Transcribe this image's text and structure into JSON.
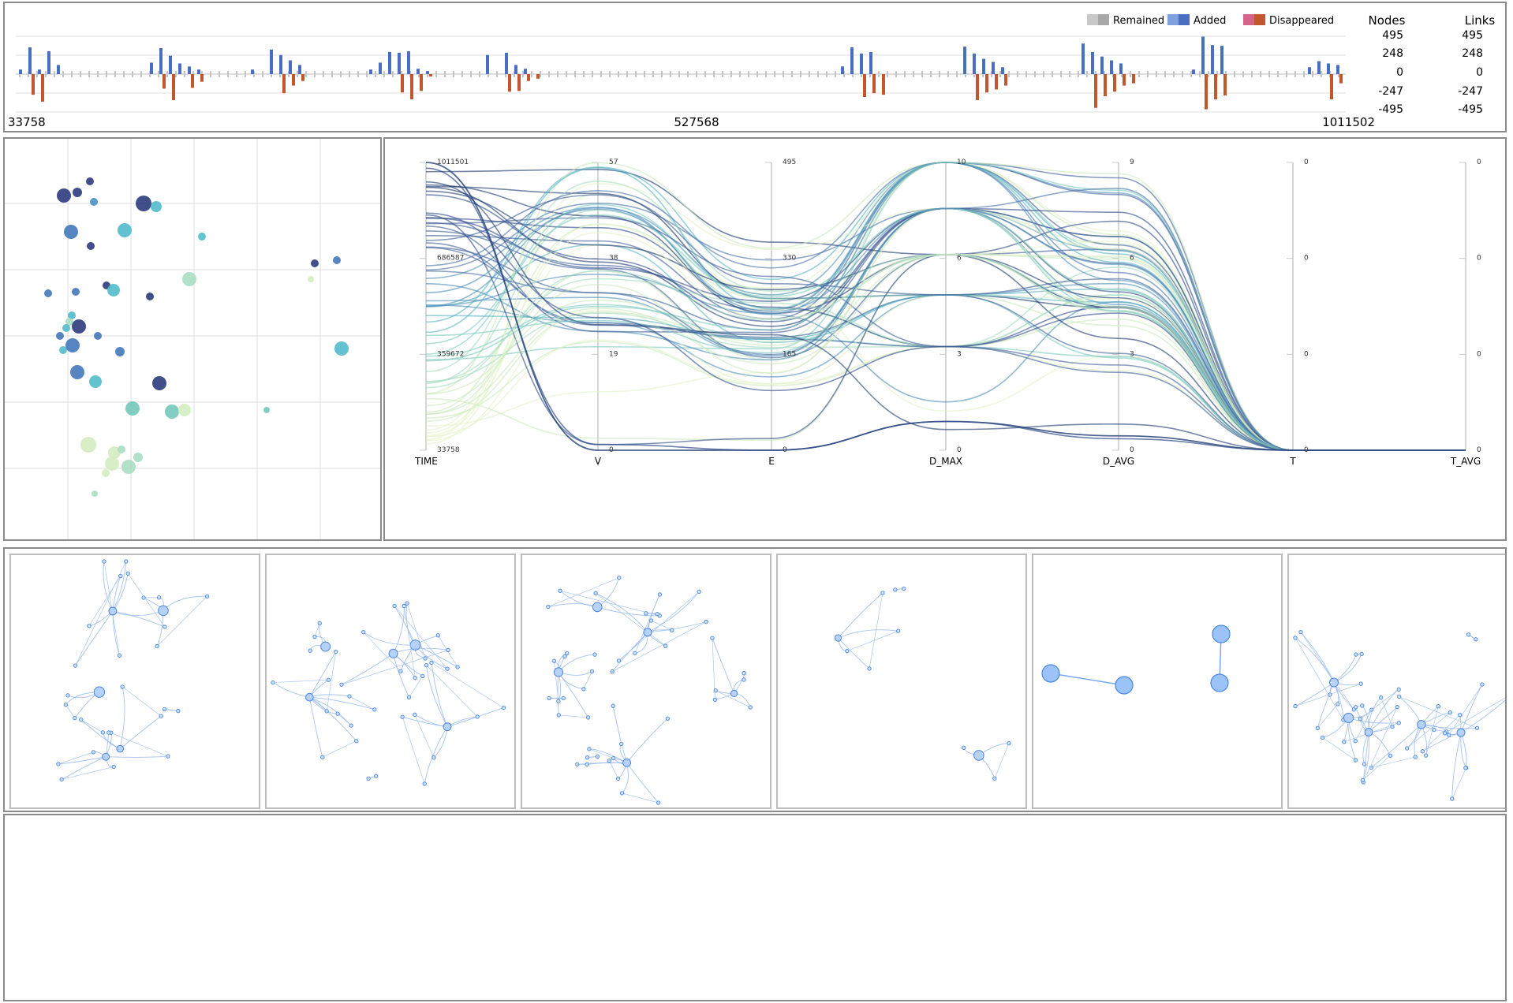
{
  "timeline": {
    "legend": [
      {
        "label": "Remained",
        "color_a": "#c8c8c8",
        "color_b": "#a8a8a8"
      },
      {
        "label": "Added",
        "color_a": "#7ea0dc",
        "color_b": "#4a6fc2"
      },
      {
        "label": "Disappeared",
        "color_a": "#d4648a",
        "color_b": "#c2562f"
      }
    ],
    "nodes_header": "Nodes",
    "links_header": "Links",
    "nodes_ticks": [
      "495",
      "248",
      "0",
      "-247",
      "-495"
    ],
    "links_ticks": [
      "495",
      "248",
      "0",
      "-247",
      "-495"
    ],
    "x_labels": [
      "33758",
      "527568",
      "1011502"
    ],
    "groups": [
      {
        "added": [
          60,
          350,
          60,
          300,
          120
        ],
        "dis": [
          0,
          270,
          360,
          0,
          0
        ]
      },
      {
        "added": [
          0,
          150,
          340,
          240,
          140,
          100,
          60
        ],
        "dis": [
          0,
          0,
          190,
          340,
          0,
          180,
          100
        ]
      },
      {
        "added": [
          60,
          0,
          320,
          250,
          180,
          120
        ],
        "dis": [
          0,
          0,
          0,
          250,
          150,
          90
        ]
      },
      {
        "added": [
          60,
          150,
          290,
          280,
          300,
          70,
          40
        ],
        "dis": [
          0,
          0,
          0,
          240,
          330,
          220,
          30
        ]
      },
      {
        "added": [
          250,
          0,
          280,
          120,
          70
        ],
        "dis": [
          0,
          0,
          230,
          220,
          90,
          60
        ]
      },
      {
        "added": [
          100,
          350,
          270,
          290
        ],
        "dis": [
          0,
          0,
          300,
          250,
          270
        ]
      },
      {
        "added": [
          360,
          270,
          200,
          160,
          90
        ],
        "dis": [
          0,
          340,
          240,
          200,
          150
        ]
      },
      {
        "added": [
          400,
          290,
          230,
          180,
          140
        ],
        "dis": [
          0,
          440,
          290,
          230,
          150,
          120
        ]
      },
      {
        "added": [
          60,
          490,
          380,
          370
        ],
        "dis": [
          0,
          460,
          330,
          280
        ]
      },
      {
        "added": [
          90,
          170,
          140,
          120
        ],
        "dis": [
          0,
          0,
          330,
          120
        ]
      }
    ]
  },
  "pcp": {
    "axes": [
      {
        "name": "TIME",
        "ticks": [
          "1011501",
          "686587",
          "359672",
          "33758"
        ]
      },
      {
        "name": "V",
        "ticks": [
          "57",
          "38",
          "19",
          "0"
        ]
      },
      {
        "name": "E",
        "ticks": [
          "495",
          "330",
          "165",
          "0"
        ]
      },
      {
        "name": "D_MAX",
        "ticks": [
          "10",
          "6",
          "3",
          "0"
        ]
      },
      {
        "name": "D_AVG",
        "ticks": [
          "9",
          "6",
          "3",
          "0"
        ]
      },
      {
        "name": "T",
        "ticks": [
          "0",
          "0",
          "0",
          "0"
        ]
      },
      {
        "name": "T_AVG",
        "ticks": [
          "0",
          "0",
          "0",
          "0"
        ]
      }
    ]
  }
}
